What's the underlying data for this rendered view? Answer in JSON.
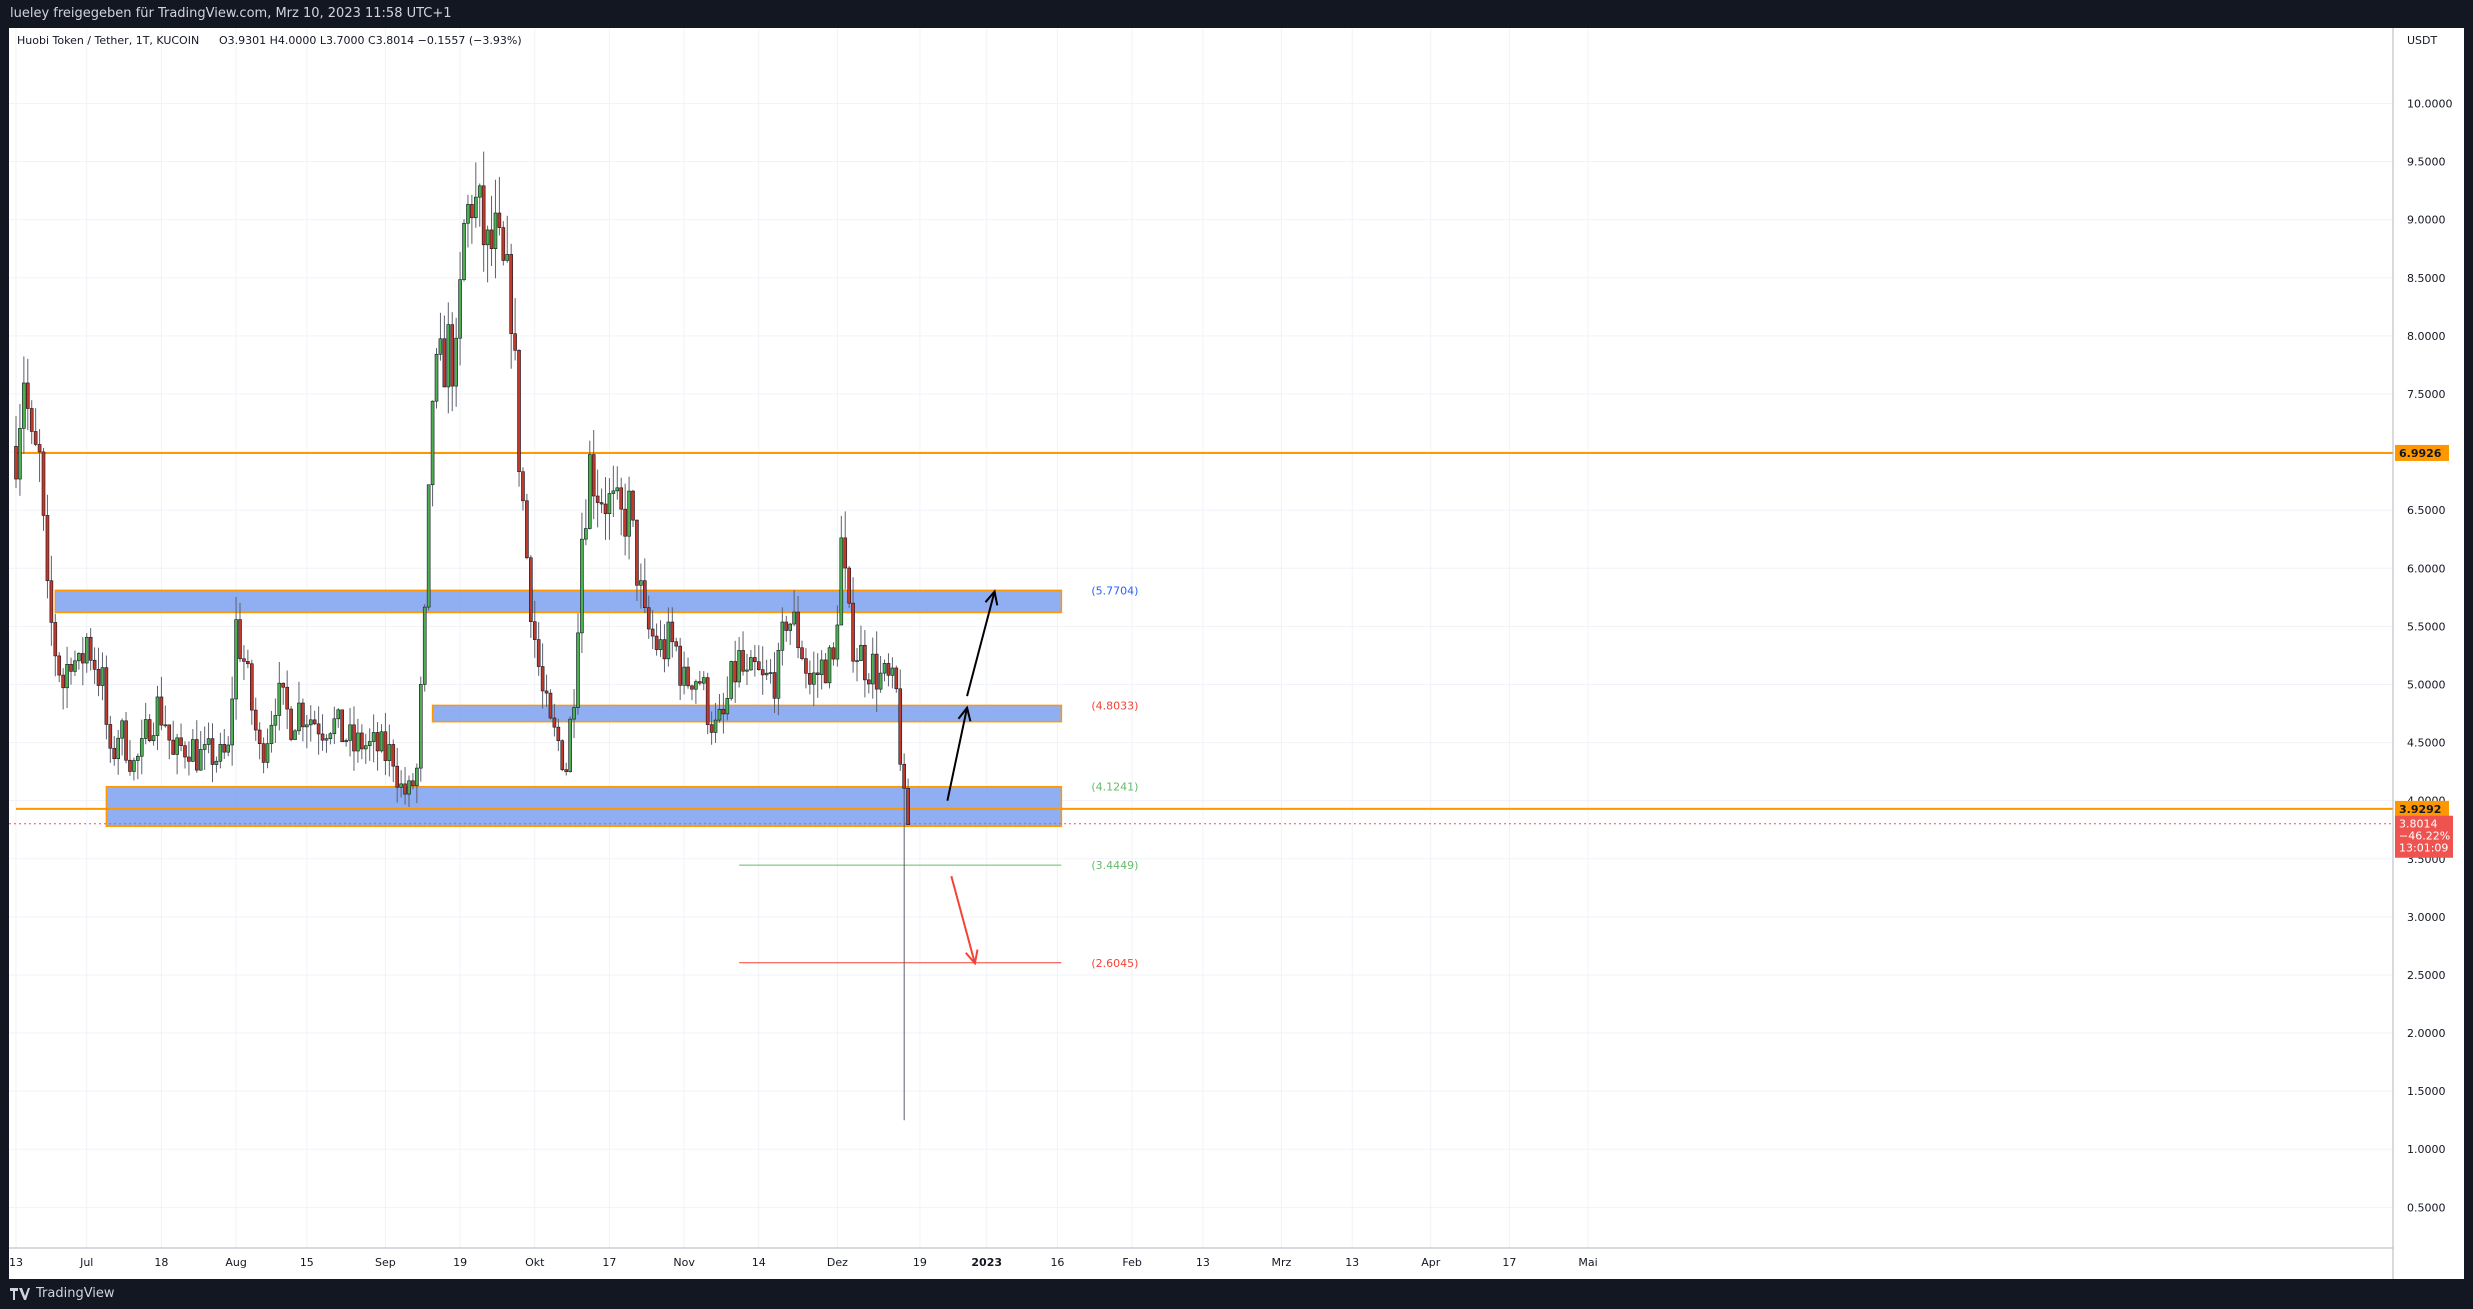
{
  "header": {
    "shared_by": "lueley freigegeben für TradingView.com, Mrz 10, 2023 11:58 UTC+1"
  },
  "footer": {
    "brand": "TradingView",
    "logo_icon": "tradingview-logo-icon"
  },
  "colors": {
    "up": "#26a69a",
    "down": "#ef5350",
    "candle_up_fill": "#4caf50",
    "candle_down_fill": "#c0392b",
    "zone_fill": "#7da0f0",
    "zone_border": "#ff9800",
    "resistance": "#ff9800",
    "green_line": "#66bb6a",
    "red_line": "#f44336",
    "blue_label": "#2962ff"
  },
  "chart_data": {
    "type": "candlestick",
    "title": "Huobi Token / Tether, 1T, KUCOIN",
    "ohlc_header": {
      "open": "O3.9301",
      "high": "H4.0000",
      "low": "L3.7000",
      "close": "C3.8014",
      "change": "−0.1557 (−3.93%)"
    },
    "currency": "USDT",
    "y_range": [
      0.15,
      10.65
    ],
    "y_ticks": [
      "10.0000",
      "9.5000",
      "9.0000",
      "8.5000",
      "8.0000",
      "7.5000",
      "7.0000",
      "6.5000",
      "6.0000",
      "5.5000",
      "5.0000",
      "4.5000",
      "4.0000",
      "3.5000",
      "3.0000",
      "2.5000",
      "2.0000",
      "1.5000",
      "1.0000",
      "0.5000"
    ],
    "x_ticks": [
      {
        "label": "13",
        "bold": false
      },
      {
        "label": "Jul",
        "bold": false
      },
      {
        "label": "18",
        "bold": false
      },
      {
        "label": "Aug",
        "bold": false
      },
      {
        "label": "15",
        "bold": false
      },
      {
        "label": "Sep",
        "bold": false
      },
      {
        "label": "19",
        "bold": false
      },
      {
        "label": "Okt",
        "bold": false
      },
      {
        "label": "17",
        "bold": false
      },
      {
        "label": "Nov",
        "bold": false
      },
      {
        "label": "14",
        "bold": false
      },
      {
        "label": "Dez",
        "bold": false
      },
      {
        "label": "19",
        "bold": false
      },
      {
        "label": "2023",
        "bold": true
      },
      {
        "label": "16",
        "bold": false
      },
      {
        "label": "Feb",
        "bold": false
      },
      {
        "label": "13",
        "bold": false
      },
      {
        "label": "Mrz",
        "bold": false
      },
      {
        "label": "13",
        "bold": false
      },
      {
        "label": "Apr",
        "bold": false
      },
      {
        "label": "17",
        "bold": false
      },
      {
        "label": "Mai",
        "bold": false
      }
    ],
    "x_tick_days": [
      0,
      18,
      37,
      56,
      74,
      94,
      113,
      132,
      151,
      170,
      189,
      209,
      230,
      247,
      265,
      284,
      302,
      322,
      340,
      360,
      380,
      400
    ],
    "candle_anchors": [
      [
        0,
        7.05
      ],
      [
        2,
        7.7
      ],
      [
        4,
        7.0
      ],
      [
        6,
        6.9
      ],
      [
        8,
        5.7
      ],
      [
        10,
        5.3
      ],
      [
        12,
        5.0
      ],
      [
        14,
        5.3
      ],
      [
        16,
        5.1
      ],
      [
        18,
        5.4
      ],
      [
        20,
        5.2
      ],
      [
        22,
        5.0
      ],
      [
        24,
        4.3
      ],
      [
        26,
        4.6
      ],
      [
        28,
        4.5
      ],
      [
        30,
        4.3
      ],
      [
        32,
        4.4
      ],
      [
        34,
        4.7
      ],
      [
        36,
        4.8
      ],
      [
        38,
        4.7
      ],
      [
        40,
        4.35
      ],
      [
        42,
        4.45
      ],
      [
        44,
        4.5
      ],
      [
        46,
        4.4
      ],
      [
        48,
        4.35
      ],
      [
        50,
        4.4
      ],
      [
        52,
        4.35
      ],
      [
        54,
        4.4
      ],
      [
        56,
        5.5
      ],
      [
        58,
        5.2
      ],
      [
        60,
        4.8
      ],
      [
        62,
        4.4
      ],
      [
        64,
        4.6
      ],
      [
        66,
        4.9
      ],
      [
        68,
        4.8
      ],
      [
        70,
        4.7
      ],
      [
        72,
        4.8
      ],
      [
        74,
        4.75
      ],
      [
        76,
        4.7
      ],
      [
        78,
        4.65
      ],
      [
        80,
        4.7
      ],
      [
        82,
        4.6
      ],
      [
        84,
        4.55
      ],
      [
        86,
        4.45
      ],
      [
        88,
        4.5
      ],
      [
        90,
        4.45
      ],
      [
        92,
        4.45
      ],
      [
        94,
        4.4
      ],
      [
        96,
        4.4
      ],
      [
        98,
        4.1
      ],
      [
        100,
        4.05
      ],
      [
        102,
        4.25
      ],
      [
        104,
        5.5
      ],
      [
        106,
        7.5
      ],
      [
        108,
        7.7
      ],
      [
        110,
        7.9
      ],
      [
        112,
        7.7
      ],
      [
        114,
        8.9
      ],
      [
        116,
        9.2
      ],
      [
        118,
        9.0
      ],
      [
        120,
        8.7
      ],
      [
        122,
        8.8
      ],
      [
        124,
        8.5
      ],
      [
        126,
        8.3
      ],
      [
        128,
        7.0
      ],
      [
        130,
        6.1
      ],
      [
        132,
        5.4
      ],
      [
        134,
        4.9
      ],
      [
        136,
        4.6
      ],
      [
        138,
        4.5
      ],
      [
        140,
        4.3
      ],
      [
        142,
        5.0
      ],
      [
        144,
        6.3
      ],
      [
        146,
        6.9
      ],
      [
        148,
        6.7
      ],
      [
        150,
        6.6
      ],
      [
        152,
        6.5
      ],
      [
        154,
        6.4
      ],
      [
        156,
        6.5
      ],
      [
        158,
        6.0
      ],
      [
        160,
        5.5
      ],
      [
        162,
        5.4
      ],
      [
        164,
        5.3
      ],
      [
        166,
        5.35
      ],
      [
        168,
        5.3
      ],
      [
        170,
        5.0
      ],
      [
        172,
        5.1
      ],
      [
        174,
        5.05
      ],
      [
        176,
        4.8
      ],
      [
        178,
        4.6
      ],
      [
        180,
        4.7
      ],
      [
        182,
        5.0
      ],
      [
        184,
        5.2
      ],
      [
        186,
        5.0
      ],
      [
        188,
        5.1
      ],
      [
        190,
        5.0
      ],
      [
        192,
        5.05
      ],
      [
        194,
        5.1
      ],
      [
        196,
        5.6
      ],
      [
        198,
        5.5
      ],
      [
        200,
        5.3
      ],
      [
        202,
        5.0
      ],
      [
        204,
        5.1
      ],
      [
        206,
        5.2
      ],
      [
        208,
        5.15
      ],
      [
        210,
        6.2
      ],
      [
        212,
        5.5
      ],
      [
        214,
        5.3
      ],
      [
        216,
        5.2
      ],
      [
        218,
        5.15
      ],
      [
        220,
        5.05
      ],
      [
        222,
        5.0
      ],
      [
        224,
        4.9
      ],
      [
        226,
        3.95
      ],
      [
        227,
        3.8
      ]
    ],
    "candle_count": 228,
    "zones": [
      {
        "from_day": 10,
        "to_day": 266,
        "low": 5.62,
        "high": 5.81,
        "label": "(5.7704)",
        "label_color": "blue_label"
      },
      {
        "from_day": 106,
        "to_day": 266,
        "low": 4.68,
        "high": 4.82,
        "label": "(4.8033)",
        "label_color": "red_line"
      },
      {
        "from_day": 23,
        "to_day": 266,
        "low": 3.78,
        "high": 4.12,
        "label": "(4.1241)",
        "label_color": "green_line"
      }
    ],
    "horizontal_lines": [
      {
        "price": 6.9926,
        "from_day": 0,
        "color": "resistance",
        "label": "6.9926",
        "axis_label": true
      },
      {
        "price": 3.9292,
        "from_day": 0,
        "color": "resistance",
        "label": "3.9292",
        "axis_label": true
      },
      {
        "price": 3.4449,
        "from_day": 184,
        "to_day": 266,
        "color": "green_line",
        "label": "(3.4449)"
      },
      {
        "price": 2.6045,
        "from_day": 184,
        "to_day": 266,
        "color": "red_line",
        "label": "(2.6045)"
      }
    ],
    "last_price": {
      "price": 3.8014,
      "lines": [
        "3.8014",
        "−46.22%",
        "13:01:09"
      ]
    },
    "arrows": [
      {
        "points": [
          [
            237,
            4.0
          ],
          [
            242,
            4.8
          ]
        ],
        "color": "#000000"
      },
      {
        "points": [
          [
            242,
            4.9
          ],
          [
            249,
            5.8
          ]
        ],
        "color": "#000000"
      },
      {
        "points": [
          [
            238,
            3.35
          ],
          [
            244,
            2.6
          ]
        ],
        "color": "red_line"
      }
    ],
    "wick_low": {
      "day": 226,
      "price": 1.25
    }
  }
}
